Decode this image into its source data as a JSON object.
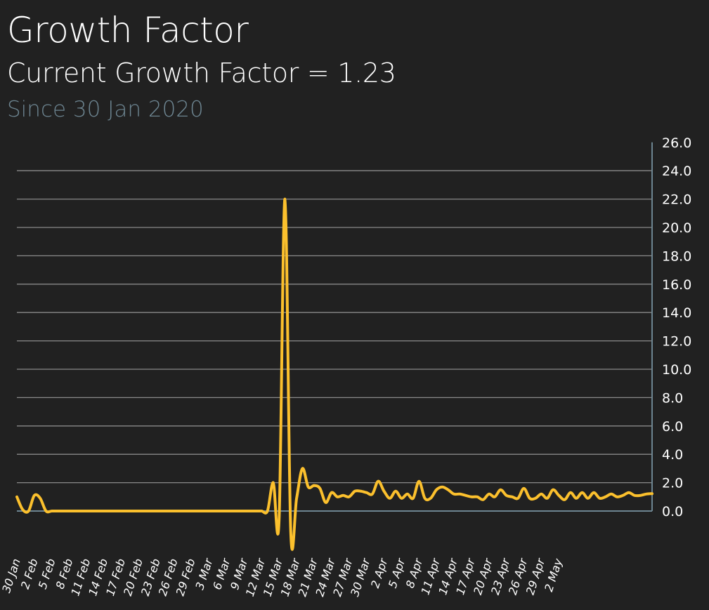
{
  "header": {
    "title": "Growth Factor",
    "subtitle": "Current Growth Factor = 1.23",
    "since": "Since 30 Jan 2020"
  },
  "colors": {
    "background": "#212121",
    "line": "#fbc02d",
    "grid": "#8a8a8a",
    "axis": "#6d8591",
    "since_text": "#6d8591"
  },
  "chart_data": {
    "type": "line",
    "title": "Growth Factor",
    "subtitle": "Current Growth Factor = 1.23",
    "xlabel": "",
    "ylabel": "",
    "ylim": [
      0,
      26
    ],
    "y_axis_position": "right",
    "y_ticks": [
      "0.0",
      "2.0",
      "4.0",
      "6.0",
      "8.0",
      "10.0",
      "12.0",
      "14.0",
      "16.0",
      "18.0",
      "20.0",
      "22.0",
      "24.0",
      "26.0"
    ],
    "x_ticks": [
      "30 Jan",
      "2 Feb",
      "5 Feb",
      "8 Feb",
      "11 Feb",
      "14 Feb",
      "17 Feb",
      "20 Feb",
      "23 Feb",
      "26 Feb",
      "29 Feb",
      "3 Mar",
      "6 Mar",
      "9 Mar",
      "12 Mar",
      "15 Mar",
      "18 Mar",
      "21 Mar",
      "24 Mar",
      "27 Mar",
      "30 Mar",
      "2 Apr",
      "5 Apr",
      "8 Apr",
      "11 Apr",
      "14 Apr",
      "17 Apr",
      "20 Apr",
      "23 Apr",
      "26 Apr",
      "29 Apr",
      "2 May"
    ],
    "grid": true,
    "legend": "none",
    "series": [
      {
        "values": [
          1.0,
          0.1,
          0.0,
          1.1,
          0.9,
          0.0,
          0.0,
          0.0,
          0.0,
          0.0,
          0.0,
          0.0,
          0.0,
          0.0,
          0.0,
          0.0,
          0.0,
          0.0,
          0.0,
          0.0,
          0.0,
          0.0,
          0.0,
          0.0,
          0.0,
          0.0,
          0.0,
          0.0,
          0.0,
          0.0,
          0.0,
          0.0,
          0.0,
          0.0,
          0.0,
          0.0,
          0.0,
          0.0,
          0.0,
          0.0,
          0.0,
          0.0,
          0.0,
          0.0,
          2.0,
          -0.6,
          22.0,
          -1.5,
          0.9,
          3.0,
          1.7,
          1.8,
          1.6,
          0.6,
          1.3,
          1.0,
          1.1,
          1.0,
          1.4,
          1.4,
          1.3,
          1.2,
          2.1,
          1.4,
          0.9,
          1.4,
          0.9,
          1.2,
          0.9,
          2.1,
          0.9,
          0.9,
          1.5,
          1.7,
          1.5,
          1.2,
          1.2,
          1.1,
          1.0,
          1.0,
          0.8,
          1.2,
          1.0,
          1.5,
          1.1,
          1.0,
          0.9,
          1.6,
          0.9,
          0.9,
          1.2,
          0.9,
          1.5,
          1.1,
          0.8,
          1.3,
          0.9,
          1.3,
          0.9,
          1.3,
          0.9,
          1.0,
          1.2,
          1.0,
          1.1,
          1.3,
          1.1,
          1.1,
          1.2,
          1.23
        ]
      }
    ]
  }
}
